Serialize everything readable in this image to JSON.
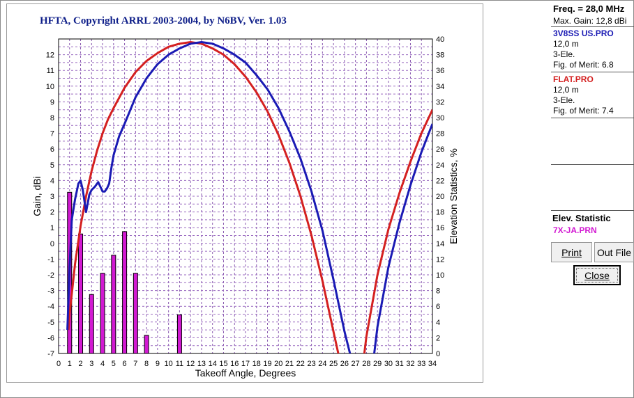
{
  "app_title": "HFTA, Copyright ARRL 2003-2004, by N6BV, Ver. 1.03",
  "side": {
    "freq": "Freq. = 28,0 MHz",
    "max_gain": "Max. Gain: 12,8 dBi",
    "files": [
      {
        "name": "3V8SS US.PRO",
        "height": "12,0 m",
        "elements": "3-Ele.",
        "merit": "Fig. of Merit:  6.8",
        "color": "#1a1ab4"
      },
      {
        "name": "FLAT.PRO",
        "height": "12,0 m",
        "elements": "3-Ele.",
        "merit": "Fig. of Merit:  7.4",
        "color": "#d42020"
      }
    ],
    "elev_title": "Elev. Statistic",
    "elev_file": "7X-JA.PRN"
  },
  "buttons": {
    "print": "Print",
    "out_file": "Out File",
    "close": "Close"
  },
  "chart_data": {
    "type": "line",
    "xlabel": "Takeoff Angle, Degrees",
    "ylabel": "Gain, dBi",
    "y2label": "Elevation Statistics, %",
    "xlim": [
      0,
      34
    ],
    "ylim": [
      -7,
      13
    ],
    "y2lim": [
      0,
      40
    ],
    "x_ticks": [
      0,
      1,
      2,
      3,
      4,
      5,
      6,
      7,
      8,
      9,
      10,
      11,
      12,
      13,
      14,
      15,
      16,
      17,
      18,
      19,
      20,
      21,
      22,
      23,
      24,
      25,
      26,
      27,
      28,
      29,
      30,
      31,
      32,
      33,
      34
    ],
    "y_ticks": [
      12,
      11,
      10,
      9,
      8,
      7,
      6,
      5,
      4,
      3,
      2,
      1,
      0,
      -1,
      -2,
      -3,
      -4,
      -5,
      -6,
      -7
    ],
    "y2_ticks": [
      40,
      38,
      36,
      34,
      32,
      30,
      28,
      26,
      24,
      22,
      20,
      18,
      16,
      14,
      12,
      10,
      8,
      6,
      4,
      2,
      0
    ],
    "series": [
      {
        "name": "3V8SS US.PRO",
        "color": "#1a1ab4",
        "x": [
          0.8,
          1.0,
          1.2,
          1.5,
          1.8,
          2.0,
          2.2,
          2.5,
          2.8,
          3.0,
          3.3,
          3.6,
          3.8,
          4.0,
          4.2,
          4.4,
          4.6,
          4.8,
          5,
          5.5,
          6,
          7,
          8,
          9,
          10,
          11,
          12,
          13,
          14,
          15,
          16,
          17,
          18,
          19,
          20,
          21,
          22,
          23,
          24,
          25,
          26,
          26.5,
          26.8,
          28.6,
          29,
          30,
          31,
          32,
          33,
          34
        ],
        "y": [
          -5.5,
          -1.5,
          1.5,
          2.8,
          3.8,
          4.0,
          3.4,
          2.0,
          3.1,
          3.4,
          3.6,
          3.9,
          3.6,
          3.3,
          3.3,
          3.5,
          3.8,
          4.8,
          5.6,
          6.8,
          7.6,
          9.3,
          10.5,
          11.4,
          12.0,
          12.4,
          12.7,
          12.8,
          12.7,
          12.4,
          12.0,
          11.5,
          10.7,
          9.8,
          8.6,
          7.1,
          5.4,
          3.3,
          0.8,
          -2.3,
          -5.6,
          -7.0,
          -7.6,
          -7.6,
          -5.3,
          -1.5,
          1.3,
          3.7,
          5.8,
          7.6
        ]
      },
      {
        "name": "FLAT.PRO",
        "color": "#d42020",
        "x": [
          0.9,
          1.0,
          1.5,
          2.0,
          2.5,
          3.0,
          3.5,
          4.0,
          4.5,
          5,
          6,
          7,
          8,
          9,
          10,
          11,
          12,
          13,
          14,
          15,
          16,
          17,
          18,
          19,
          20,
          21,
          22,
          23,
          24,
          25,
          25.5,
          25.8,
          27.7,
          28,
          29,
          30,
          31,
          32,
          33,
          34
        ],
        "y": [
          -5.5,
          -4.5,
          -1.3,
          1.1,
          3.0,
          4.6,
          5.9,
          7.0,
          7.9,
          8.6,
          9.9,
          10.9,
          11.6,
          12.1,
          12.5,
          12.7,
          12.8,
          12.7,
          12.4,
          12.0,
          11.4,
          10.6,
          9.6,
          8.4,
          6.9,
          5.1,
          3.0,
          0.5,
          -2.4,
          -5.6,
          -7.2,
          -7.6,
          -7.6,
          -5.9,
          -2.0,
          0.9,
          3.2,
          5.2,
          7.0,
          8.5
        ]
      }
    ],
    "bars": {
      "name": "7X-JA.PRN",
      "color": "#d219d2",
      "x": [
        1,
        2,
        3,
        4,
        5,
        6,
        7,
        8,
        11
      ],
      "values": [
        20.5,
        15.2,
        7.5,
        10.2,
        12.5,
        15.5,
        10.2,
        2.3,
        4.9
      ]
    }
  }
}
